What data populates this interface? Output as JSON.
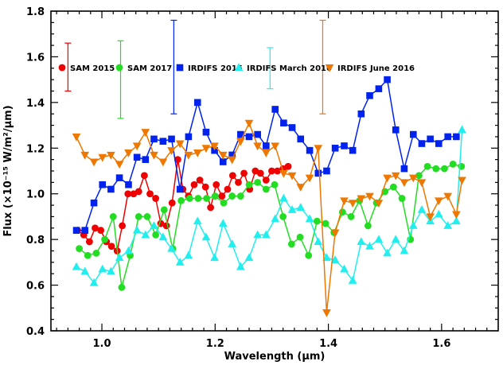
{
  "chart_data": {
    "type": "line",
    "xlabel": "Wavelength (µm)",
    "ylabel": "Flux (×10⁻¹⁵ W/m²/µm)",
    "xlim": [
      0.91,
      1.7
    ],
    "ylim": [
      0.4,
      1.8
    ],
    "x_ticks": [
      "1.0",
      "1.2",
      "1.4",
      "1.6"
    ],
    "y_ticks": [
      "0.4",
      "0.6",
      "0.8",
      "1.0",
      "1.2",
      "1.4",
      "1.6",
      "1.8"
    ],
    "legend_placement": "top-left",
    "series": [
      {
        "name": "SAM 2015",
        "color": "#ee0000",
        "marker": "circle",
        "error_bar": {
          "x": 0.94,
          "center": 1.555,
          "half_range": 0.105
        },
        "x": [
          0.957,
          0.968,
          0.978,
          0.988,
          0.998,
          1.008,
          1.017,
          1.027,
          1.036,
          1.046,
          1.056,
          1.065,
          1.075,
          1.085,
          1.095,
          1.104,
          1.114,
          1.124,
          1.134,
          1.143,
          1.153,
          1.163,
          1.173,
          1.183,
          1.192,
          1.202,
          1.212,
          1.222,
          1.231,
          1.241,
          1.251,
          1.261,
          1.271,
          1.28,
          1.29,
          1.3,
          1.31,
          1.32,
          1.329
        ],
        "y": [
          0.84,
          0.82,
          0.79,
          0.85,
          0.84,
          0.79,
          0.77,
          0.75,
          0.86,
          1.0,
          1.0,
          1.01,
          1.08,
          1.0,
          0.98,
          0.87,
          0.86,
          0.96,
          1.15,
          1.02,
          0.99,
          1.04,
          1.06,
          1.03,
          0.94,
          1.04,
          0.99,
          1.02,
          1.08,
          1.05,
          1.09,
          1.02,
          1.1,
          1.09,
          1.06,
          1.1,
          1.1,
          1.11,
          1.12
        ]
      },
      {
        "name": "SAM 2017",
        "color": "#22dd22",
        "marker": "circle",
        "error_bar": {
          "x": 1.033,
          "center": 1.5,
          "half_range": 0.17
        },
        "x": [
          0.96,
          0.975,
          0.99,
          1.005,
          1.02,
          1.035,
          1.05,
          1.065,
          1.08,
          1.095,
          1.11,
          1.125,
          1.14,
          1.155,
          1.17,
          1.185,
          1.2,
          1.215,
          1.23,
          1.245,
          1.26,
          1.275,
          1.29,
          1.305,
          1.32,
          1.335,
          1.35,
          1.365,
          1.38,
          1.395,
          1.41,
          1.425,
          1.44,
          1.455,
          1.47,
          1.485,
          1.5,
          1.515,
          1.53,
          1.545,
          1.56,
          1.575,
          1.59,
          1.605,
          1.62,
          1.635
        ],
        "y": [
          0.76,
          0.73,
          0.74,
          0.8,
          0.9,
          0.59,
          0.73,
          0.9,
          0.9,
          0.82,
          0.93,
          0.76,
          0.97,
          0.98,
          0.98,
          0.98,
          0.99,
          0.96,
          0.99,
          0.99,
          1.04,
          1.05,
          1.02,
          1.04,
          0.9,
          0.78,
          0.81,
          0.73,
          0.88,
          0.87,
          0.83,
          0.92,
          0.9,
          0.97,
          0.86,
          0.96,
          1.01,
          1.03,
          0.98,
          0.8,
          1.08,
          1.12,
          1.11,
          1.11,
          1.13,
          1.12
        ]
      },
      {
        "name": "IRDIFS 2015",
        "color": "#0022ee",
        "marker": "square",
        "error_bar": {
          "x": 1.127,
          "center": 1.555,
          "half_range": 0.205
        },
        "x": [
          0.955,
          0.97,
          0.986,
          1.001,
          1.016,
          1.031,
          1.047,
          1.062,
          1.077,
          1.092,
          1.108,
          1.123,
          1.138,
          1.153,
          1.169,
          1.184,
          1.199,
          1.214,
          1.23,
          1.245,
          1.26,
          1.275,
          1.29,
          1.306,
          1.321,
          1.336,
          1.351,
          1.367,
          1.382,
          1.397,
          1.412,
          1.428,
          1.443,
          1.458,
          1.473,
          1.489,
          1.504,
          1.519,
          1.534,
          1.55,
          1.565,
          1.58,
          1.595,
          1.611,
          1.626
        ],
        "y": [
          0.84,
          0.84,
          0.96,
          1.04,
          1.02,
          1.07,
          1.04,
          1.16,
          1.15,
          1.24,
          1.23,
          1.24,
          1.02,
          1.25,
          1.4,
          1.27,
          1.19,
          1.14,
          1.17,
          1.26,
          1.25,
          1.26,
          1.21,
          1.37,
          1.31,
          1.29,
          1.24,
          1.19,
          1.09,
          1.1,
          1.2,
          1.21,
          1.19,
          1.35,
          1.43,
          1.46,
          1.5,
          1.28,
          1.11,
          1.26,
          1.22,
          1.24,
          1.22,
          1.25,
          1.25
        ]
      },
      {
        "name": "IRDIFS March 2016",
        "color": "#22eeee",
        "marker": "triangle-up",
        "error_bar": {
          "x": 1.297,
          "center": 1.55,
          "half_range": 0.09
        },
        "x": [
          0.955,
          0.97,
          0.986,
          1.001,
          1.016,
          1.031,
          1.047,
          1.062,
          1.077,
          1.092,
          1.108,
          1.123,
          1.138,
          1.153,
          1.169,
          1.184,
          1.199,
          1.214,
          1.23,
          1.245,
          1.26,
          1.275,
          1.29,
          1.306,
          1.321,
          1.336,
          1.351,
          1.367,
          1.382,
          1.397,
          1.412,
          1.428,
          1.443,
          1.458,
          1.473,
          1.489,
          1.504,
          1.519,
          1.534,
          1.55,
          1.565,
          1.58,
          1.595,
          1.611,
          1.626,
          1.636
        ],
        "y": [
          0.68,
          0.66,
          0.61,
          0.67,
          0.66,
          0.72,
          0.75,
          0.84,
          0.82,
          0.86,
          0.81,
          0.76,
          0.7,
          0.73,
          0.88,
          0.81,
          0.72,
          0.87,
          0.78,
          0.68,
          0.72,
          0.82,
          0.82,
          0.89,
          0.98,
          0.93,
          0.94,
          0.89,
          0.79,
          0.72,
          0.71,
          0.67,
          0.62,
          0.79,
          0.77,
          0.8,
          0.74,
          0.8,
          0.75,
          0.86,
          0.93,
          0.88,
          0.91,
          0.86,
          0.88,
          1.28
        ]
      },
      {
        "name": "IRDIFS June 2016",
        "color": "#ee7700",
        "marker": "triangle-down",
        "error_bar": {
          "x": 1.39,
          "center": 1.555,
          "half_range": 0.205
        },
        "x": [
          0.955,
          0.97,
          0.986,
          1.001,
          1.016,
          1.031,
          1.047,
          1.062,
          1.077,
          1.092,
          1.108,
          1.123,
          1.138,
          1.153,
          1.169,
          1.184,
          1.199,
          1.214,
          1.23,
          1.245,
          1.26,
          1.275,
          1.29,
          1.306,
          1.321,
          1.336,
          1.351,
          1.367,
          1.382,
          1.397,
          1.412,
          1.428,
          1.443,
          1.458,
          1.473,
          1.489,
          1.504,
          1.519,
          1.534,
          1.55,
          1.565,
          1.58,
          1.595,
          1.611,
          1.626,
          1.636
        ],
        "y": [
          1.25,
          1.17,
          1.14,
          1.16,
          1.17,
          1.13,
          1.18,
          1.21,
          1.27,
          1.17,
          1.14,
          1.19,
          1.22,
          1.17,
          1.18,
          1.2,
          1.21,
          1.17,
          1.15,
          1.23,
          1.31,
          1.21,
          1.18,
          1.21,
          1.09,
          1.08,
          1.03,
          1.07,
          1.2,
          0.48,
          0.83,
          0.97,
          0.96,
          0.98,
          0.99,
          0.96,
          1.07,
          1.08,
          1.05,
          1.07,
          1.05,
          0.9,
          0.97,
          0.99,
          0.91,
          1.06
        ]
      }
    ]
  }
}
